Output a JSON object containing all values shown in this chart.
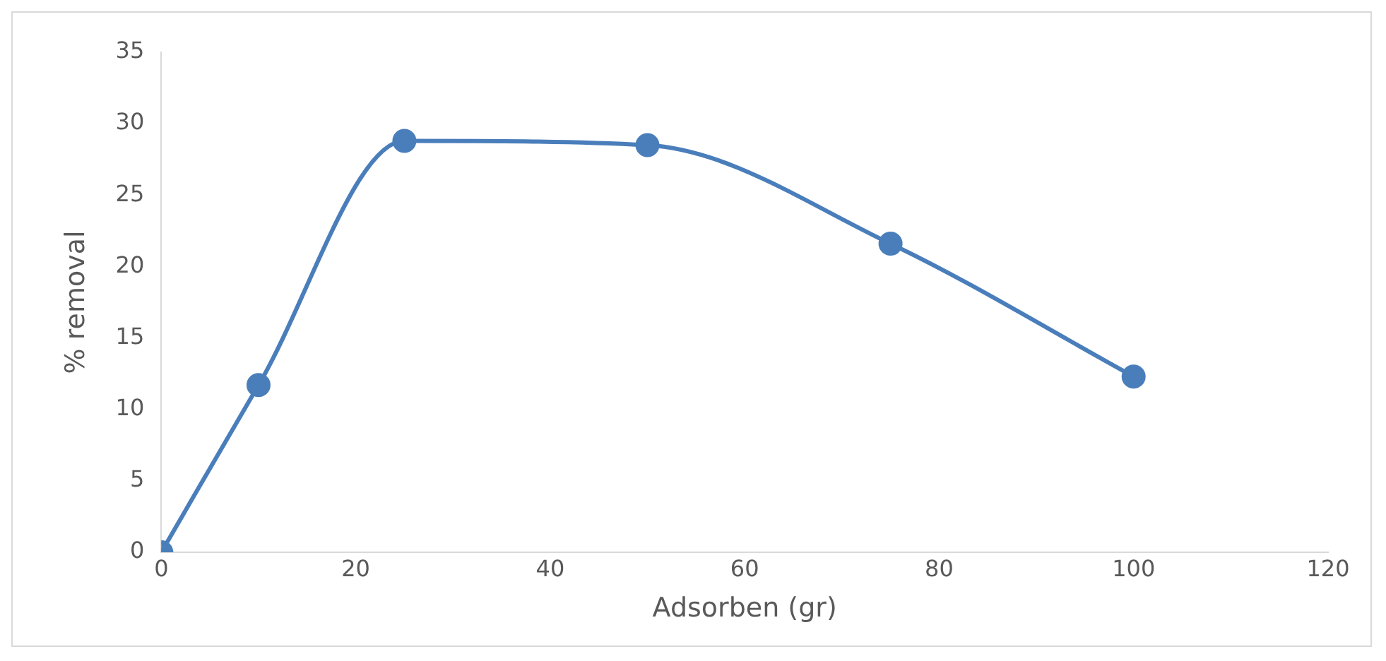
{
  "chart_data": {
    "type": "line",
    "xlabel": "Adsorben (gr)",
    "ylabel": "% removal",
    "x": [
      0,
      10,
      25,
      50,
      75,
      100
    ],
    "series": [
      {
        "color": "#4a7ebb",
        "values": [
          0,
          11.7,
          28.8,
          28.5,
          21.6,
          12.3
        ]
      }
    ],
    "xlim": [
      0,
      120
    ],
    "xticks": [
      0,
      20,
      40,
      60,
      80,
      100,
      120
    ],
    "ylim": [
      0,
      35
    ],
    "yticks": [
      0,
      5,
      10,
      15,
      20,
      25,
      30,
      35
    ],
    "marker": "circle",
    "line_style": "solid",
    "grid": false,
    "legend": false
  }
}
